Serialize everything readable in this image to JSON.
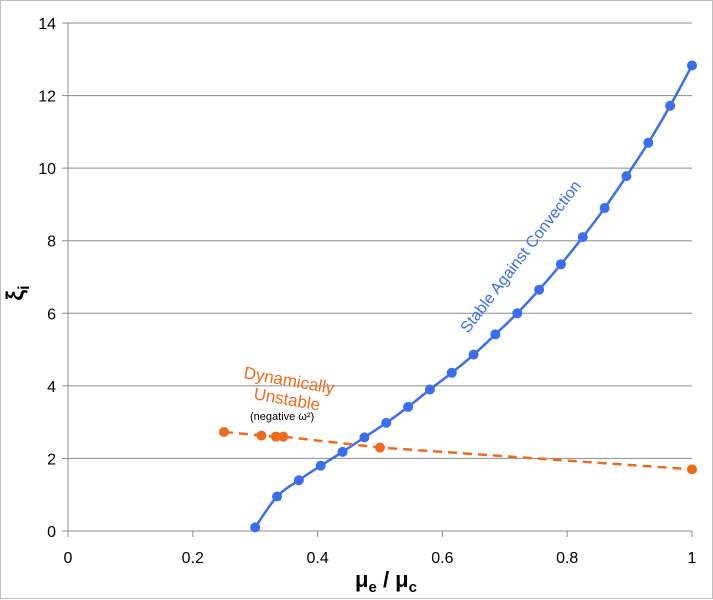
{
  "chart_data": {
    "type": "scatter",
    "xlabel": "μe / μc",
    "ylabel": "ξi",
    "xlim": [
      0,
      1
    ],
    "ylim": [
      0,
      14
    ],
    "x_ticks": [
      "0",
      "0.2",
      "0.4",
      "0.6",
      "0.8",
      "1"
    ],
    "y_ticks": [
      "0",
      "2",
      "4",
      "6",
      "8",
      "10",
      "12",
      "14"
    ],
    "grid": "horizontal",
    "series": [
      {
        "name": "Stable Against Convection",
        "color": "#3a6df0",
        "line": "solid-smooth",
        "x": [
          0.3,
          0.335,
          0.37,
          0.405,
          0.44,
          0.475,
          0.51,
          0.545,
          0.58,
          0.615,
          0.65,
          0.685,
          0.72,
          0.755,
          0.79,
          0.825,
          0.86,
          0.895,
          0.93,
          0.965,
          1.0
        ],
        "y": [
          0.1,
          0.95,
          1.4,
          1.8,
          2.18,
          2.58,
          2.98,
          3.42,
          3.9,
          4.36,
          4.86,
          5.42,
          6.0,
          6.65,
          7.35,
          8.1,
          8.9,
          9.78,
          10.7,
          11.72,
          12.83
        ]
      },
      {
        "name": "Dynamically Unstable",
        "color": "#f06a1e",
        "line": "dashed",
        "x": [
          0.25,
          0.31,
          0.333,
          0.345,
          0.5,
          1.0
        ],
        "y": [
          2.73,
          2.63,
          2.6,
          2.6,
          2.3,
          1.7
        ]
      }
    ],
    "annotations": {
      "stable": "Stable Against Convection",
      "unstable_line1": "Dynamically",
      "unstable_line2": "Unstable",
      "unstable_note": "(negative ω²)"
    }
  }
}
